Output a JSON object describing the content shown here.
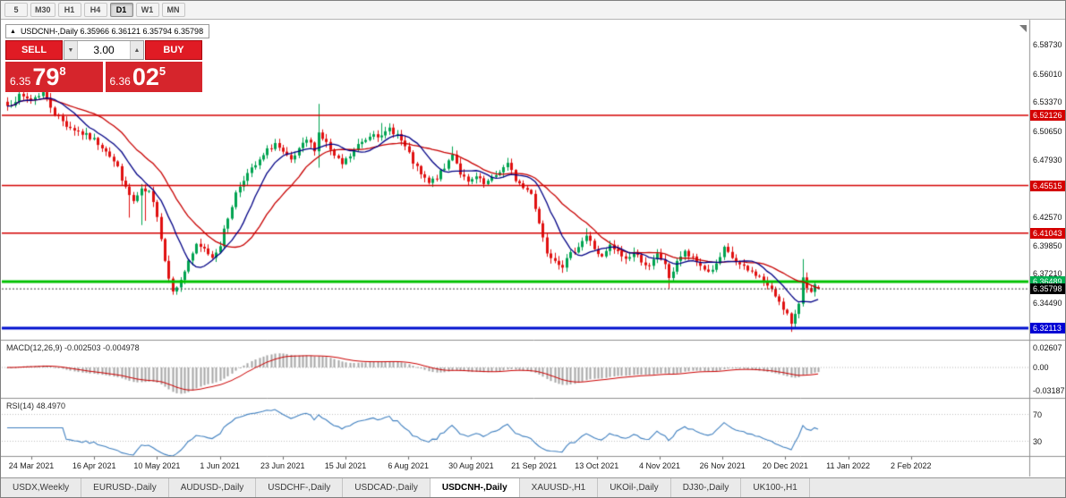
{
  "toolbar": {
    "timeframes": [
      {
        "label": "5",
        "active": false
      },
      {
        "label": "M30",
        "active": false
      },
      {
        "label": "H1",
        "active": false
      },
      {
        "label": "H4",
        "active": false
      },
      {
        "label": "D1",
        "active": true
      },
      {
        "label": "W1",
        "active": false
      },
      {
        "label": "MN",
        "active": false
      }
    ]
  },
  "quote_box": {
    "expander_icon": "▲",
    "text": "USDCNH-,Daily 6.35966 6.36121 6.35794 6.35798"
  },
  "trade_panel": {
    "sell_label": "SELL",
    "buy_label": "BUY",
    "volume": "3.00",
    "volume_down_icon": "▼",
    "volume_up_icon": "▲",
    "sell_quote": {
      "prefix": "6.35",
      "big": "79",
      "sup": "8"
    },
    "buy_quote": {
      "prefix": "6.36",
      "big": "02",
      "sup": "5"
    }
  },
  "price_axis": {
    "labels": [
      "6.58730",
      "6.56010",
      "6.53370",
      "6.50650",
      "6.47930",
      "6.45290",
      "6.42570",
      "6.39850",
      "6.37210",
      "6.34490",
      "6.31850"
    ]
  },
  "levels": [
    {
      "value": "6.52126",
      "color": "#d40000",
      "kind": "resistance-line"
    },
    {
      "value": "6.45515",
      "color": "#d40000",
      "kind": "resistance-line"
    },
    {
      "value": "6.41043",
      "color": "#d40000",
      "kind": "resistance-line"
    },
    {
      "value": "6.36489",
      "color": "#00b050",
      "kind": "support-line"
    },
    {
      "value": "6.35798",
      "color": "#000000",
      "kind": "bid-price"
    },
    {
      "value": "6.32113",
      "color": "#0000d4",
      "kind": "support-line"
    }
  ],
  "macd_panel": {
    "label": "MACD(12,26,9) -0.002503 -0.004978",
    "axis_labels": [
      {
        "text": "0.02607",
        "value": 0.02607
      },
      {
        "text": "0.00",
        "value": 0
      },
      {
        "text": "-0.03187",
        "value": -0.03187
      }
    ]
  },
  "rsi_panel": {
    "label": "RSI(14) 48.4970",
    "axis_labels": [
      {
        "text": "70",
        "value": 70
      },
      {
        "text": "30",
        "value": 30
      }
    ]
  },
  "time_axis": {
    "labels": [
      "24 Mar 2021",
      "16 Apr 2021",
      "10 May 2021",
      "1 Jun 2021",
      "23 Jun 2021",
      "15 Jul 2021",
      "6 Aug 2021",
      "30 Aug 2021",
      "21 Sep 2021",
      "13 Oct 2021",
      "4 Nov 2021",
      "26 Nov 2021",
      "20 Dec 2021",
      "11 Jan 2022",
      "2 Feb 2022"
    ]
  },
  "tabs": [
    {
      "label": "USDX,Weekly",
      "active": false
    },
    {
      "label": "EURUSD-,Daily",
      "active": false
    },
    {
      "label": "AUDUSD-,Daily",
      "active": false
    },
    {
      "label": "USDCHF-,Daily",
      "active": false
    },
    {
      "label": "USDCAD-,Daily",
      "active": false
    },
    {
      "label": "USDCNH-,Daily",
      "active": true
    },
    {
      "label": "XAUUSD-,H1",
      "active": false
    },
    {
      "label": "UKOil-,Daily",
      "active": false
    },
    {
      "label": "DJ30-,Daily",
      "active": false
    },
    {
      "label": "UK100-,H1",
      "active": false
    }
  ],
  "chart_data": {
    "type": "candlestick+indicators",
    "symbol": "USDCNH-",
    "timeframe": "Daily",
    "ohlc_header": {
      "open": "6.35966",
      "high": "6.36121",
      "low": "6.35794",
      "close": "6.35798"
    },
    "bar_count": 207,
    "visible_price_range": [
      6.312,
      6.605
    ],
    "price_anchors": [
      [
        0,
        6.53
      ],
      [
        3,
        6.539
      ],
      [
        6,
        6.536
      ],
      [
        9,
        6.543
      ],
      [
        12,
        6.523
      ],
      [
        15,
        6.512
      ],
      [
        18,
        6.506
      ],
      [
        20,
        6.502
      ],
      [
        22,
        6.498
      ],
      [
        25,
        6.489
      ],
      [
        28,
        6.472
      ],
      [
        30,
        6.452
      ],
      [
        32,
        6.44
      ],
      [
        34,
        6.45
      ],
      [
        36,
        6.448
      ],
      [
        38,
        6.428
      ],
      [
        40,
        6.385
      ],
      [
        41,
        6.368
      ],
      [
        42,
        6.358
      ],
      [
        44,
        6.365
      ],
      [
        46,
        6.385
      ],
      [
        48,
        6.398
      ],
      [
        50,
        6.395
      ],
      [
        52,
        6.388
      ],
      [
        54,
        6.4
      ],
      [
        56,
        6.425
      ],
      [
        58,
        6.448
      ],
      [
        60,
        6.462
      ],
      [
        62,
        6.47
      ],
      [
        64,
        6.478
      ],
      [
        66,
        6.488
      ],
      [
        68,
        6.495
      ],
      [
        70,
        6.485
      ],
      [
        72,
        6.478
      ],
      [
        74,
        6.488
      ],
      [
        76,
        6.498
      ],
      [
        78,
        6.49
      ],
      [
        79,
        6.505
      ],
      [
        81,
        6.495
      ],
      [
        83,
        6.482
      ],
      [
        85,
        6.475
      ],
      [
        87,
        6.483
      ],
      [
        89,
        6.493
      ],
      [
        91,
        6.499
      ],
      [
        93,
        6.506
      ],
      [
        95,
        6.5
      ],
      [
        97,
        6.509
      ],
      [
        99,
        6.503
      ],
      [
        101,
        6.491
      ],
      [
        103,
        6.477
      ],
      [
        105,
        6.465
      ],
      [
        107,
        6.457
      ],
      [
        109,
        6.463
      ],
      [
        111,
        6.471
      ],
      [
        113,
        6.486
      ],
      [
        115,
        6.467
      ],
      [
        117,
        6.457
      ],
      [
        119,
        6.463
      ],
      [
        121,
        6.456
      ],
      [
        123,
        6.461
      ],
      [
        125,
        6.469
      ],
      [
        127,
        6.475
      ],
      [
        129,
        6.461
      ],
      [
        131,
        6.453
      ],
      [
        133,
        6.449
      ],
      [
        135,
        6.42
      ],
      [
        137,
        6.393
      ],
      [
        139,
        6.386
      ],
      [
        141,
        6.38
      ],
      [
        143,
        6.39
      ],
      [
        145,
        6.399
      ],
      [
        147,
        6.408
      ],
      [
        149,
        6.396
      ],
      [
        151,
        6.387
      ],
      [
        153,
        6.398
      ],
      [
        155,
        6.392
      ],
      [
        157,
        6.386
      ],
      [
        159,
        6.392
      ],
      [
        161,
        6.385
      ],
      [
        163,
        6.378
      ],
      [
        165,
        6.39
      ],
      [
        167,
        6.382
      ],
      [
        168,
        6.366
      ],
      [
        170,
        6.385
      ],
      [
        172,
        6.392
      ],
      [
        174,
        6.386
      ],
      [
        176,
        6.38
      ],
      [
        178,
        6.374
      ],
      [
        180,
        6.38
      ],
      [
        182,
        6.395
      ],
      [
        184,
        6.387
      ],
      [
        186,
        6.38
      ],
      [
        188,
        6.375
      ],
      [
        190,
        6.372
      ],
      [
        192,
        6.365
      ],
      [
        194,
        6.356
      ],
      [
        196,
        6.347
      ],
      [
        198,
        6.334
      ],
      [
        199,
        6.324
      ],
      [
        200,
        6.332
      ],
      [
        201,
        6.345
      ],
      [
        202,
        6.37
      ],
      [
        203,
        6.361
      ],
      [
        204,
        6.354
      ],
      [
        205,
        6.36
      ],
      [
        206,
        6.35798
      ]
    ],
    "wick_overrides": [
      [
        9,
        "high",
        6.548
      ],
      [
        31,
        "low",
        6.425
      ],
      [
        34,
        "low",
        6.418
      ],
      [
        35,
        "low",
        6.422
      ],
      [
        79,
        "high",
        6.532
      ],
      [
        79,
        "low",
        6.472
      ],
      [
        95,
        "high",
        6.514
      ],
      [
        113,
        "high",
        6.492
      ],
      [
        147,
        "high",
        6.415
      ],
      [
        168,
        "low",
        6.358
      ],
      [
        199,
        "low",
        6.3175
      ],
      [
        202,
        "high",
        6.386
      ]
    ],
    "indicators": {
      "macd": {
        "fast": 12,
        "slow": 26,
        "signal": 9,
        "current_values": [
          "-0.002503",
          "-0.004978"
        ]
      },
      "rsi": {
        "period": 14,
        "current_value": "48.4970",
        "levels": [
          70,
          30
        ]
      }
    },
    "colors": {
      "bull": "#00a351",
      "bear": "#e01010",
      "ma_fast_blue": "#000085",
      "ma_slow_red": "#c80000",
      "macd_hist": "#a6a6a6",
      "macd_signal": "#cc0000",
      "rsi_line": "#4080c0",
      "level_red": "#d40000",
      "level_green": "#00c000",
      "level_blue": "#0010d0",
      "bid_line": "#3c3c3c"
    }
  }
}
